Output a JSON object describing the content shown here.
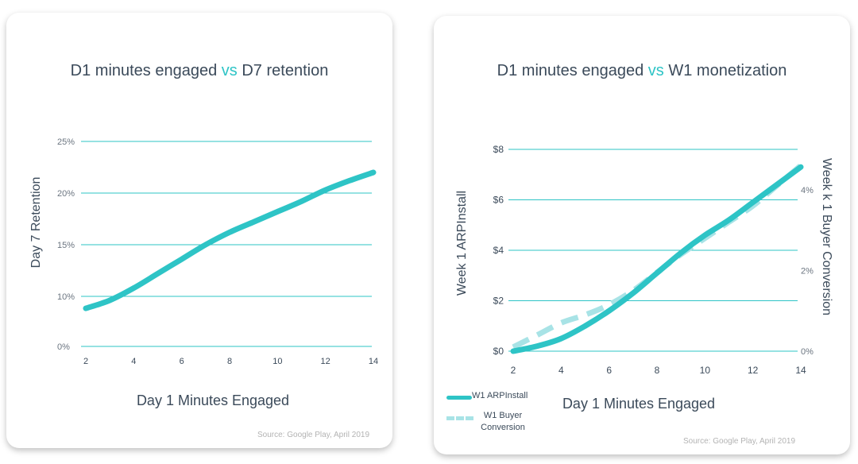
{
  "chart_data": [
    {
      "type": "line",
      "title_part1": "D1 minutes engaged",
      "title_vs": "vs",
      "title_part2": "D7 retention",
      "xlabel": "Day 1 Minutes Engaged",
      "ylabel": "Day 7 Retention",
      "x_ticks": [
        "2",
        "4",
        "6",
        "8",
        "10",
        "12",
        "14"
      ],
      "y_ticks": [
        "0%",
        "10%",
        "15%",
        "20%",
        "25%"
      ],
      "grid": true,
      "series": [
        {
          "color": "#2ec4c6",
          "x": [
            2,
            3,
            4,
            5,
            6,
            7,
            8,
            9,
            10,
            11,
            12,
            13,
            14
          ],
          "y": [
            7.6,
            9.2,
            10.8,
            12.2,
            13.6,
            15.0,
            16.2,
            17.2,
            18.2,
            19.2,
            20.3,
            21.2,
            22.0
          ]
        }
      ],
      "source": "Source: Google Play, April 2019"
    },
    {
      "type": "line",
      "title_part1": "D1 minutes engaged",
      "title_vs": "vs",
      "title_part2": "W1 monetization",
      "xlabel": "Day 1 Minutes Engaged",
      "ylabel": "Week 1 ARPInstall",
      "y2label": "Week k 1 Buyer Conversion",
      "x_ticks": [
        "2",
        "4",
        "6",
        "8",
        "10",
        "12",
        "14"
      ],
      "y_ticks": [
        "$0",
        "$2",
        "$4",
        "$6",
        "$8"
      ],
      "y2_ticks": [
        "0%",
        "2%",
        "4%"
      ],
      "ylim": [
        0,
        8
      ],
      "y2lim": [
        0,
        5
      ],
      "grid": true,
      "legend_position": "bottom-left",
      "series": [
        {
          "name": "W1 ARPInstall",
          "style": "solid",
          "axis": "left",
          "color": "#2ec4c6",
          "x": [
            2,
            3,
            4,
            5,
            6,
            7,
            8,
            9,
            10,
            11,
            12,
            13,
            14
          ],
          "y": [
            0.0,
            0.2,
            0.5,
            1.0,
            1.6,
            2.3,
            3.1,
            3.9,
            4.6,
            5.2,
            5.9,
            6.6,
            7.3
          ]
        },
        {
          "name": "W1 Buyer Conversion",
          "style": "dashed",
          "axis": "right",
          "color": "#a8e3e6",
          "x": [
            2,
            3,
            4,
            5,
            6,
            7,
            8,
            9,
            10,
            11,
            12,
            13,
            14
          ],
          "y": [
            0.1,
            0.4,
            0.7,
            0.9,
            1.15,
            1.5,
            1.95,
            2.4,
            2.8,
            3.2,
            3.6,
            4.1,
            4.6
          ]
        }
      ],
      "source": "Source: Google Play, April 2019"
    }
  ]
}
